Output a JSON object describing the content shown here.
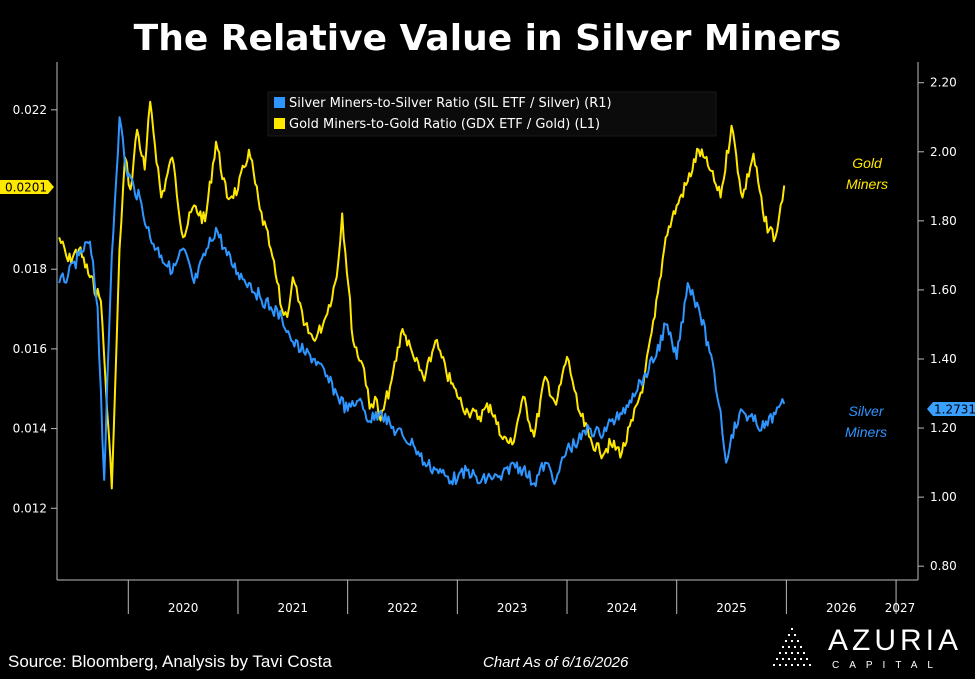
{
  "title": "The Relative Value in Silver Miners",
  "footer": {
    "source": "Source: Bloomberg, Analysis by Tavi Costa",
    "date": "Chart As of 6/16/2026"
  },
  "brand": {
    "name": "AZURIA",
    "sub": "CAPITAL"
  },
  "colors": {
    "gold": "#ffe800",
    "silver": "#2f95ff",
    "background": "#000000"
  },
  "chart_data": {
    "type": "line",
    "title": "The Relative Value in Silver Miners",
    "x_ticks": [
      "2020",
      "2021",
      "2022",
      "2023",
      "2024",
      "2025",
      "2026",
      "2027"
    ],
    "x_range": [
      2019.35,
      2027.2
    ],
    "left_axis": {
      "ticks": [
        "0.012",
        "0.014",
        "0.016",
        "0.018",
        "0.022"
      ],
      "range": [
        0.0102,
        0.0232
      ]
    },
    "right_axis": {
      "ticks": [
        "0.80",
        "1.00",
        "1.20",
        "1.40",
        "1.60",
        "1.80",
        "2.00",
        "2.20"
      ],
      "range": [
        0.76,
        2.26
      ]
    },
    "legend": [
      {
        "label": "Silver Miners-to-Silver Ratio (SIL ETF / Silver) (R1)",
        "color": "#2f95ff"
      },
      {
        "label": "Gold Miners-to-Gold Ratio (GDX ETF / Gold) (L1)",
        "color": "#ffe800"
      }
    ],
    "legend_position": "top-center",
    "annotations": [
      {
        "text_lines": [
          "Gold",
          "Miners"
        ],
        "series": "gold"
      },
      {
        "text_lines": [
          "Silver",
          "Miners"
        ],
        "series": "silver"
      }
    ],
    "last_value_labels": {
      "gold": "0.0201",
      "silver": "1.2731"
    },
    "series": [
      {
        "key": "gold",
        "axis": "left",
        "x": [
          2019.37,
          2019.45,
          2019.55,
          2019.65,
          2019.75,
          2019.85,
          2019.88,
          2019.92,
          2019.97,
          2020.02,
          2020.08,
          2020.15,
          2020.2,
          2020.3,
          2020.4,
          2020.5,
          2020.6,
          2020.7,
          2020.8,
          2020.9,
          2021.0,
          2021.1,
          2021.2,
          2021.3,
          2021.4,
          2021.45,
          2021.5,
          2021.55,
          2021.6,
          2021.7,
          2021.8,
          2021.9,
          2021.95,
          2022.05,
          2022.15,
          2022.2,
          2022.25,
          2022.3,
          2022.4,
          2022.5,
          2022.6,
          2022.7,
          2022.8,
          2022.9,
          2023.0,
          2023.1,
          2023.2,
          2023.3,
          2023.4,
          2023.5,
          2023.6,
          2023.7,
          2023.8,
          2023.9,
          2024.0,
          2024.05,
          2024.1,
          2024.2,
          2024.3,
          2024.4,
          2024.5,
          2024.6,
          2024.7,
          2024.8,
          2024.9,
          2025.0,
          2025.1,
          2025.2,
          2025.3,
          2025.4,
          2025.5,
          2025.6,
          2025.7,
          2025.8,
          2025.9,
          2025.98
        ],
        "y": [
          0.0188,
          0.0182,
          0.0185,
          0.0178,
          0.0172,
          0.0125,
          0.015,
          0.0185,
          0.0208,
          0.02,
          0.0215,
          0.0205,
          0.0222,
          0.0198,
          0.0208,
          0.0188,
          0.0196,
          0.0192,
          0.0212,
          0.0198,
          0.02,
          0.021,
          0.0195,
          0.0185,
          0.017,
          0.0168,
          0.0178,
          0.0172,
          0.0166,
          0.0162,
          0.0168,
          0.0178,
          0.0194,
          0.0162,
          0.0155,
          0.0145,
          0.0148,
          0.0142,
          0.0152,
          0.0165,
          0.0158,
          0.0152,
          0.0162,
          0.0154,
          0.0148,
          0.0144,
          0.0143,
          0.0146,
          0.0138,
          0.0136,
          0.0148,
          0.0138,
          0.0153,
          0.0146,
          0.0158,
          0.0152,
          0.0145,
          0.0138,
          0.0134,
          0.0136,
          0.0134,
          0.0142,
          0.0152,
          0.0168,
          0.0188,
          0.0196,
          0.0202,
          0.021,
          0.0205,
          0.0198,
          0.0216,
          0.0198,
          0.0209,
          0.0192,
          0.0188,
          0.0201
        ]
      },
      {
        "key": "silver",
        "axis": "right",
        "x": [
          2019.37,
          2019.45,
          2019.55,
          2019.65,
          2019.72,
          2019.78,
          2019.85,
          2019.92,
          2019.98,
          2020.05,
          2020.12,
          2020.2,
          2020.3,
          2020.4,
          2020.5,
          2020.6,
          2020.7,
          2020.8,
          2020.9,
          2021.0,
          2021.1,
          2021.2,
          2021.3,
          2021.4,
          2021.5,
          2021.6,
          2021.7,
          2021.8,
          2021.9,
          2022.0,
          2022.1,
          2022.2,
          2022.3,
          2022.4,
          2022.5,
          2022.6,
          2022.7,
          2022.8,
          2022.9,
          2023.0,
          2023.1,
          2023.2,
          2023.3,
          2023.4,
          2023.5,
          2023.6,
          2023.7,
          2023.8,
          2023.9,
          2024.0,
          2024.1,
          2024.2,
          2024.3,
          2024.4,
          2024.5,
          2024.6,
          2024.7,
          2024.8,
          2024.9,
          2025.0,
          2025.1,
          2025.2,
          2025.3,
          2025.4,
          2025.45,
          2025.5,
          2025.6,
          2025.7,
          2025.8,
          2025.9,
          2025.98
        ],
        "y": [
          1.62,
          1.64,
          1.7,
          1.74,
          1.55,
          1.05,
          1.7,
          2.1,
          1.95,
          1.9,
          1.85,
          1.75,
          1.7,
          1.65,
          1.72,
          1.62,
          1.7,
          1.78,
          1.7,
          1.65,
          1.62,
          1.58,
          1.55,
          1.52,
          1.45,
          1.42,
          1.4,
          1.35,
          1.3,
          1.25,
          1.28,
          1.22,
          1.25,
          1.2,
          1.18,
          1.15,
          1.1,
          1.08,
          1.06,
          1.05,
          1.08,
          1.04,
          1.06,
          1.05,
          1.1,
          1.08,
          1.04,
          1.1,
          1.05,
          1.14,
          1.16,
          1.2,
          1.18,
          1.22,
          1.24,
          1.3,
          1.35,
          1.4,
          1.5,
          1.4,
          1.62,
          1.55,
          1.42,
          1.25,
          1.1,
          1.18,
          1.25,
          1.22,
          1.2,
          1.24,
          1.27
        ]
      }
    ]
  }
}
